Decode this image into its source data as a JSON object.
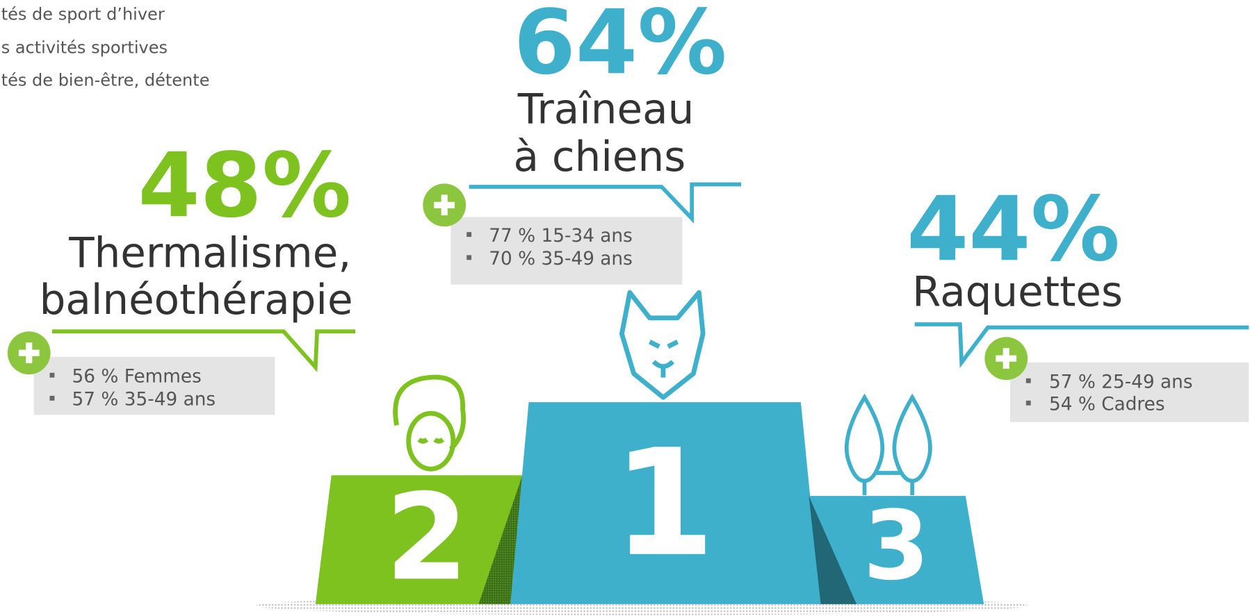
{
  "legend": [
    "tés de sport d’hiver",
    "s activités sportives",
    "tés de bien-être, détente"
  ],
  "podium": [
    {
      "rank": "1",
      "percent": "64%",
      "label": [
        "Traîneau",
        "à chiens"
      ],
      "details": [
        "77 % 15-34 ans",
        "70 % 35-49 ans"
      ]
    },
    {
      "rank": "2",
      "percent": "48%",
      "label": [
        "Thermalisme,",
        "balnéothérapie"
      ],
      "details": [
        "56 % Femmes",
        "57 % 35-49 ans"
      ]
    },
    {
      "rank": "3",
      "percent": "44%",
      "label": [
        "Raquettes"
      ],
      "details": [
        "57 % 25-49 ans",
        "54 % Cadres"
      ]
    }
  ]
}
